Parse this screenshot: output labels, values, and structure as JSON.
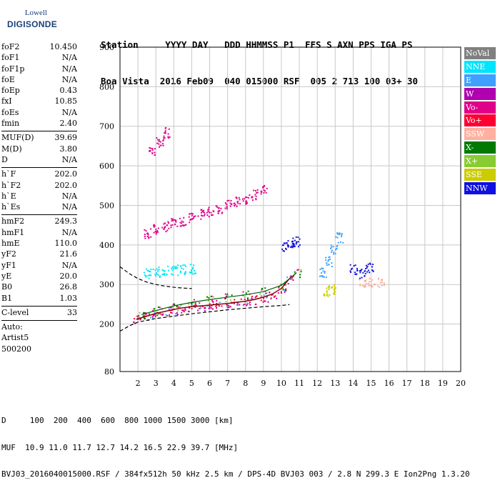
{
  "logo": {
    "brand_top": "Lowell",
    "brand_main": "DIGISONDE"
  },
  "header": {
    "line1": "Station     YYYY DAY   DDD HHMMSS P1  FFS S AXN PPS IGA PS",
    "line2": "Boa Vista  2016 Feb09  040 015000 RSF  005 2 713 100 03+ 30"
  },
  "params_group1": [
    {
      "k": "foF2",
      "v": "10.450"
    },
    {
      "k": "foF1",
      "v": "N/A"
    },
    {
      "k": "foF1p",
      "v": "N/A"
    },
    {
      "k": "foE",
      "v": "N/A"
    },
    {
      "k": "foEp",
      "v": "0.43"
    },
    {
      "k": "fxI",
      "v": "10.85"
    },
    {
      "k": "foEs",
      "v": "N/A"
    },
    {
      "k": "fmin",
      "v": "2.40"
    }
  ],
  "params_group2": [
    {
      "k": "MUF(D)",
      "v": "39.69"
    },
    {
      "k": "M(D)",
      "v": "3.80"
    },
    {
      "k": "D",
      "v": "N/A"
    }
  ],
  "params_group3": [
    {
      "k": "h`F",
      "v": "202.0"
    },
    {
      "k": "h`F2",
      "v": "202.0"
    },
    {
      "k": "h`E",
      "v": "N/A"
    },
    {
      "k": "h`Es",
      "v": "N/A"
    }
  ],
  "params_group4": [
    {
      "k": "hmF2",
      "v": "249.3"
    },
    {
      "k": "hmF1",
      "v": "N/A"
    },
    {
      "k": "hmE",
      "v": "110.0"
    },
    {
      "k": "yF2",
      "v": "21.6"
    },
    {
      "k": "yF1",
      "v": "N/A"
    },
    {
      "k": "yE",
      "v": "20.0"
    },
    {
      "k": "B0",
      "v": "26.8"
    },
    {
      "k": "B1",
      "v": "1.03"
    }
  ],
  "params_group5": [
    {
      "k": "C-level",
      "v": "33"
    }
  ],
  "auto": {
    "line1": "Auto:",
    "line2": "Artist5",
    "line3": "500200"
  },
  "legend": [
    {
      "label": "NoVal",
      "color": "#808080"
    },
    {
      "label": "NNE",
      "color": "#00e5ff"
    },
    {
      "label": "E",
      "color": "#3fa0ff"
    },
    {
      "label": "W",
      "color": "#b000b0"
    },
    {
      "label": "Vo-",
      "color": "#e0008a"
    },
    {
      "label": "Vo+",
      "color": "#ff0033"
    },
    {
      "label": "SSW",
      "color": "#ffb0a0"
    },
    {
      "label": "X-",
      "color": "#007a00"
    },
    {
      "label": "X+",
      "color": "#88cc33"
    },
    {
      "label": "SSE",
      "color": "#cccc00"
    },
    {
      "label": "NNW",
      "color": "#1010e0"
    }
  ],
  "footer": {
    "line1": "D     100  200  400  600  800 1000 1500 3000 [km]",
    "line2": "MUF  10.9 11.0 11.7 12.7 14.2 16.5 22.9 39.7 [MHz]",
    "line3": "BVJ03_2016040015000.RSF / 384fx512h 50 kHz 2.5 km / DPS-4D BVJ03 003 / 2.8 N 299.3 E Ion2Png 1.3.20"
  },
  "chart_data": {
    "type": "scatter",
    "title": "",
    "xlabel": "",
    "ylabel": "",
    "xlim": [
      1,
      20
    ],
    "ylim": [
      80,
      900
    ],
    "grid": true,
    "x_ticks": [
      2,
      3,
      4,
      5,
      6,
      7,
      8,
      9,
      10,
      11,
      12,
      13,
      14,
      15,
      16,
      17,
      18,
      19,
      20
    ],
    "y_ticks": [
      200,
      300,
      400,
      500,
      600,
      700,
      800,
      900
    ],
    "y_tick_labels_shown": [
      "80",
      "200",
      "300",
      "400",
      "500",
      "600",
      "700",
      "800",
      "900"
    ],
    "trace_o_mode": {
      "x": [
        1.9,
        2.5,
        3.0,
        3.5,
        4.0,
        4.5,
        5.0,
        5.5,
        6.0,
        6.5,
        7.0,
        7.5,
        8.0,
        8.5,
        9.0,
        9.5,
        10.0,
        10.45
      ],
      "y": [
        212,
        220,
        227,
        232,
        237,
        241,
        244,
        246,
        248,
        250,
        252,
        255,
        258,
        262,
        268,
        276,
        290,
        315
      ]
    },
    "trace_x_mode": {
      "x": [
        2.2,
        3.0,
        4.0,
        5.0,
        6.0,
        7.0,
        8.0,
        9.0,
        10.0,
        10.85
      ],
      "y": [
        224,
        234,
        246,
        255,
        262,
        268,
        274,
        282,
        298,
        330
      ]
    },
    "profile_curve": {
      "x": [
        1.0,
        1.5,
        2.0,
        3.0,
        4.0,
        5.0,
        6.0,
        7.0,
        8.0,
        9.0,
        10.0,
        10.45
      ],
      "y": [
        182,
        195,
        205,
        214,
        220,
        226,
        231,
        236,
        240,
        244,
        247,
        249.3
      ]
    },
    "upper_dashed_curve": {
      "x": [
        1.0,
        1.5,
        2.0,
        2.5,
        3.0,
        3.5,
        4.0,
        4.5,
        5.0
      ],
      "y": [
        345,
        328,
        315,
        306,
        300,
        296,
        293,
        291,
        290
      ]
    },
    "echo_clusters": [
      {
        "x": [
          2.5,
          3.0,
          3.5,
          4.0,
          4.5,
          5.0,
          5.5,
          6.0,
          6.5,
          7.0,
          7.5,
          8.0,
          8.5,
          9.0
        ],
        "y": [
          430,
          440,
          448,
          455,
          462,
          470,
          478,
          486,
          494,
          502,
          510,
          518,
          528,
          540
        ],
        "color": "#e0008a"
      },
      {
        "x": [
          2.8,
          3.2,
          3.6
        ],
        "y": [
          640,
          660,
          685
        ],
        "color": "#e0008a"
      },
      {
        "x": [
          2.5,
          3.0,
          3.5,
          4.0,
          4.5,
          5.0
        ],
        "y": [
          330,
          333,
          336,
          338,
          340,
          341
        ],
        "color": "#00e5ff"
      },
      {
        "x": [
          10.2,
          10.5,
          10.8
        ],
        "y": [
          395,
          405,
          410
        ],
        "color": "#1010e0"
      },
      {
        "x": [
          12.3,
          12.6,
          12.9,
          13.2
        ],
        "y": [
          330,
          360,
          390,
          420
        ],
        "color": "#3fa0ff"
      },
      {
        "x": [
          14.0,
          14.5,
          14.9
        ],
        "y": [
          340,
          330,
          345
        ],
        "color": "#1010e0"
      },
      {
        "x": [
          14.5,
          15.0,
          15.5
        ],
        "y": [
          305,
          308,
          306
        ],
        "color": "#ffb0a0"
      },
      {
        "x": [
          12.5,
          12.8
        ],
        "y": [
          285,
          290
        ],
        "color": "#cccc00"
      }
    ]
  }
}
